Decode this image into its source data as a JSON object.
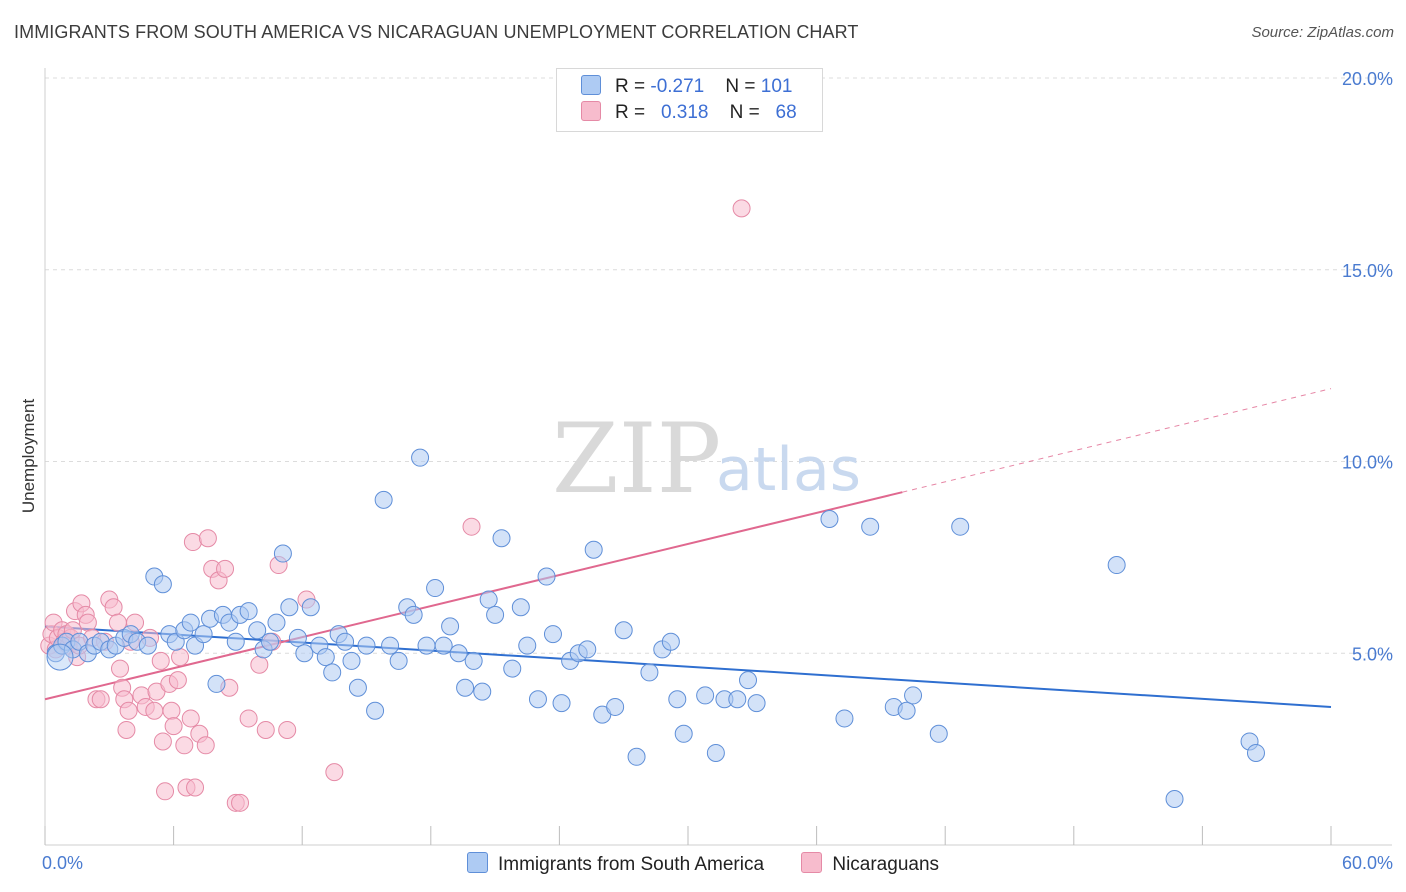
{
  "title": "IMMIGRANTS FROM SOUTH AMERICA VS NICARAGUAN UNEMPLOYMENT CORRELATION CHART",
  "source": "Source: ZipAtlas.com",
  "watermark": {
    "zip": "ZIP",
    "atlas": "atlas"
  },
  "legend": {
    "rows": [
      {
        "r_label": "R = ",
        "r_value": "-0.271",
        "n_label": "N = ",
        "n_value": "101"
      },
      {
        "r_label": "R = ",
        "r_value": "0.318",
        "n_label": "N = ",
        "n_value": "68"
      }
    ]
  },
  "bottom_legend": {
    "s1": "Immigrants from South America",
    "s2": "Nicaraguans"
  },
  "colors": {
    "blue_fill": "#aecbf3",
    "blue_stroke": "#5f8fd8",
    "blue_line": "#2f6fd0",
    "pink_fill": "#f7bccd",
    "pink_stroke": "#e58aa6",
    "pink_line": "#e0688f",
    "axis_text": "#4a7bd0"
  },
  "chart_data": {
    "type": "scatter",
    "title": "IMMIGRANTS FROM SOUTH AMERICA VS NICARAGUAN UNEMPLOYMENT CORRELATION CHART",
    "xlabel": "",
    "ylabel": "Unemployment",
    "xlim": [
      0,
      60
    ],
    "ylim": [
      0,
      20
    ],
    "x_tick_labels": [
      "0.0%",
      "60.0%"
    ],
    "y_tick_labels": [
      "5.0%",
      "10.0%",
      "15.0%",
      "20.0%"
    ],
    "y_ticks": [
      5,
      10,
      15,
      20
    ],
    "x_minor_ticks": [
      0,
      6,
      12,
      18,
      24,
      30,
      36,
      42,
      48,
      54,
      60
    ],
    "grid": "horizontal dashed",
    "legend_position": "top-center",
    "series": [
      {
        "name": "Immigrants from South America",
        "trend": {
          "x": [
            0,
            60
          ],
          "y": [
            5.7,
            3.6
          ]
        },
        "points": [
          [
            0.5,
            5.0
          ],
          [
            0.8,
            5.2
          ],
          [
            1.0,
            5.3
          ],
          [
            1.3,
            5.1
          ],
          [
            1.6,
            5.3
          ],
          [
            2.0,
            5.0
          ],
          [
            2.3,
            5.2
          ],
          [
            2.6,
            5.3
          ],
          [
            3.0,
            5.1
          ],
          [
            3.3,
            5.2
          ],
          [
            3.7,
            5.4
          ],
          [
            4.0,
            5.5
          ],
          [
            4.3,
            5.3
          ],
          [
            4.8,
            5.2
          ],
          [
            5.1,
            7.0
          ],
          [
            5.5,
            6.8
          ],
          [
            5.8,
            5.5
          ],
          [
            6.1,
            5.3
          ],
          [
            6.5,
            5.6
          ],
          [
            6.8,
            5.8
          ],
          [
            7.0,
            5.2
          ],
          [
            7.4,
            5.5
          ],
          [
            7.7,
            5.9
          ],
          [
            8.0,
            4.2
          ],
          [
            8.3,
            6.0
          ],
          [
            8.6,
            5.8
          ],
          [
            8.9,
            5.3
          ],
          [
            9.1,
            6.0
          ],
          [
            9.5,
            6.1
          ],
          [
            9.9,
            5.6
          ],
          [
            10.2,
            5.1
          ],
          [
            10.5,
            5.3
          ],
          [
            10.8,
            5.8
          ],
          [
            11.1,
            7.6
          ],
          [
            11.4,
            6.2
          ],
          [
            11.8,
            5.4
          ],
          [
            12.1,
            5.0
          ],
          [
            12.4,
            6.2
          ],
          [
            12.8,
            5.2
          ],
          [
            13.1,
            4.9
          ],
          [
            13.4,
            4.5
          ],
          [
            13.7,
            5.5
          ],
          [
            14.0,
            5.3
          ],
          [
            14.3,
            4.8
          ],
          [
            14.6,
            4.1
          ],
          [
            15.0,
            5.2
          ],
          [
            15.4,
            3.5
          ],
          [
            15.8,
            9.0
          ],
          [
            16.1,
            5.2
          ],
          [
            16.5,
            4.8
          ],
          [
            16.9,
            6.2
          ],
          [
            17.2,
            6.0
          ],
          [
            17.5,
            10.1
          ],
          [
            17.8,
            5.2
          ],
          [
            18.2,
            6.7
          ],
          [
            18.6,
            5.2
          ],
          [
            18.9,
            5.7
          ],
          [
            19.3,
            5.0
          ],
          [
            19.6,
            4.1
          ],
          [
            20.0,
            4.8
          ],
          [
            20.4,
            4.0
          ],
          [
            20.7,
            6.4
          ],
          [
            21.0,
            6.0
          ],
          [
            21.3,
            8.0
          ],
          [
            21.8,
            4.6
          ],
          [
            22.2,
            6.2
          ],
          [
            22.5,
            5.2
          ],
          [
            23.0,
            3.8
          ],
          [
            23.4,
            7.0
          ],
          [
            23.7,
            5.5
          ],
          [
            24.1,
            3.7
          ],
          [
            24.5,
            4.8
          ],
          [
            24.9,
            5.0
          ],
          [
            25.3,
            5.1
          ],
          [
            25.6,
            7.7
          ],
          [
            26.0,
            3.4
          ],
          [
            26.6,
            3.6
          ],
          [
            27.0,
            5.6
          ],
          [
            27.6,
            2.3
          ],
          [
            28.2,
            4.5
          ],
          [
            28.8,
            5.1
          ],
          [
            29.2,
            5.3
          ],
          [
            29.5,
            3.8
          ],
          [
            29.8,
            2.9
          ],
          [
            30.8,
            3.9
          ],
          [
            31.3,
            2.4
          ],
          [
            31.7,
            3.8
          ],
          [
            32.3,
            3.8
          ],
          [
            32.8,
            4.3
          ],
          [
            33.2,
            3.7
          ],
          [
            36.6,
            8.5
          ],
          [
            37.3,
            3.3
          ],
          [
            38.5,
            8.3
          ],
          [
            39.6,
            3.6
          ],
          [
            40.2,
            3.5
          ],
          [
            40.5,
            3.9
          ],
          [
            41.7,
            2.9
          ],
          [
            42.7,
            8.3
          ],
          [
            50.0,
            7.3
          ],
          [
            52.7,
            1.2
          ],
          [
            56.2,
            2.7
          ],
          [
            56.5,
            2.4
          ]
        ]
      },
      {
        "name": "Nicaraguans",
        "trend": {
          "x": [
            0,
            40
          ],
          "y": [
            3.8,
            9.2
          ]
        },
        "trend_dashed": {
          "x": [
            40,
            60
          ],
          "y": [
            9.2,
            11.9
          ]
        },
        "points": [
          [
            0.2,
            5.2
          ],
          [
            0.3,
            5.5
          ],
          [
            0.4,
            5.8
          ],
          [
            0.5,
            5.1
          ],
          [
            0.6,
            5.4
          ],
          [
            0.8,
            5.6
          ],
          [
            0.9,
            5.3
          ],
          [
            1.0,
            5.5
          ],
          [
            1.1,
            5.2
          ],
          [
            1.2,
            5.4
          ],
          [
            1.3,
            5.6
          ],
          [
            1.4,
            6.1
          ],
          [
            1.5,
            4.9
          ],
          [
            1.6,
            5.2
          ],
          [
            1.7,
            6.3
          ],
          [
            1.9,
            6.0
          ],
          [
            2.0,
            5.8
          ],
          [
            2.2,
            5.4
          ],
          [
            2.4,
            3.8
          ],
          [
            2.6,
            3.8
          ],
          [
            2.8,
            5.3
          ],
          [
            3.0,
            6.4
          ],
          [
            3.2,
            6.2
          ],
          [
            3.4,
            5.8
          ],
          [
            3.5,
            4.6
          ],
          [
            3.6,
            4.1
          ],
          [
            3.7,
            3.8
          ],
          [
            3.8,
            3.0
          ],
          [
            3.9,
            3.5
          ],
          [
            4.0,
            5.3
          ],
          [
            4.2,
            5.8
          ],
          [
            4.5,
            3.9
          ],
          [
            4.7,
            3.6
          ],
          [
            4.9,
            5.4
          ],
          [
            5.1,
            3.5
          ],
          [
            5.2,
            4.0
          ],
          [
            5.4,
            4.8
          ],
          [
            5.5,
            2.7
          ],
          [
            5.6,
            1.4
          ],
          [
            5.8,
            4.2
          ],
          [
            5.9,
            3.5
          ],
          [
            6.0,
            3.1
          ],
          [
            6.2,
            4.3
          ],
          [
            6.3,
            4.9
          ],
          [
            6.5,
            2.6
          ],
          [
            6.6,
            1.5
          ],
          [
            6.8,
            3.3
          ],
          [
            6.9,
            7.9
          ],
          [
            7.0,
            1.5
          ],
          [
            7.2,
            2.9
          ],
          [
            7.5,
            2.6
          ],
          [
            7.6,
            8.0
          ],
          [
            7.8,
            7.2
          ],
          [
            8.1,
            6.9
          ],
          [
            8.4,
            7.2
          ],
          [
            8.6,
            4.1
          ],
          [
            8.9,
            1.1
          ],
          [
            9.1,
            1.1
          ],
          [
            9.5,
            3.3
          ],
          [
            10.0,
            4.7
          ],
          [
            10.3,
            3.0
          ],
          [
            10.6,
            5.3
          ],
          [
            10.9,
            7.3
          ],
          [
            11.3,
            3.0
          ],
          [
            12.2,
            6.4
          ],
          [
            13.5,
            1.9
          ],
          [
            19.9,
            8.3
          ],
          [
            32.5,
            16.6
          ]
        ]
      }
    ]
  }
}
